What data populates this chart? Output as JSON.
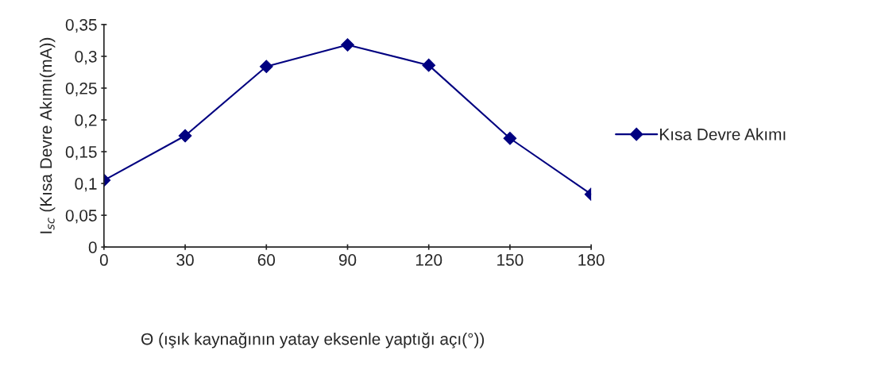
{
  "chart_data": {
    "type": "line",
    "xlabel": "Θ (ışık kaynağının yatay eksenle yaptığı açı(°))",
    "ylabel": "I$_{sc}$ (Kısa Devre Akımı(mA))",
    "x": [
      0,
      30,
      60,
      90,
      120,
      150,
      180
    ],
    "series": [
      {
        "name": "Kısa Devre Akımı",
        "color": "#000080",
        "values": [
          0.105,
          0.175,
          0.284,
          0.318,
          0.286,
          0.171,
          0.083
        ]
      }
    ],
    "xlim": [
      0,
      180
    ],
    "xticks": [
      0,
      30,
      60,
      90,
      120,
      150,
      180
    ],
    "ylim": [
      0,
      0.35
    ],
    "yticks": [
      0,
      {
        "value": 0.05,
        "label": "0,05"
      },
      {
        "value": 0.1,
        "label": "0,1"
      },
      {
        "value": 0.15,
        "label": "0,15"
      },
      {
        "value": 0.2,
        "label": "0,2"
      },
      {
        "value": 0.25,
        "label": "0,25"
      },
      {
        "value": 0.3,
        "label": "0,3"
      },
      {
        "value": 0.35,
        "label": "0,35"
      }
    ],
    "marker": "diamond",
    "line_style": "solid",
    "grid": false,
    "legend": "right"
  }
}
